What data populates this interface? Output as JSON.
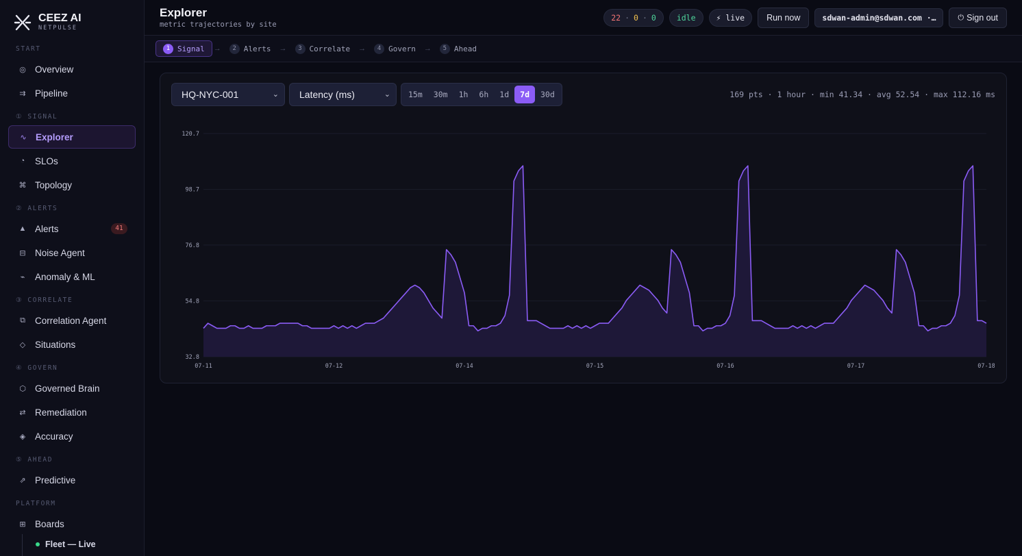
{
  "brand": {
    "name": "CEEZ AI",
    "sub": "NETPULSE"
  },
  "sidebar": {
    "sections": [
      {
        "label": "START",
        "items": [
          {
            "label": "Overview",
            "icon": "◎",
            "icon_name": "overview-icon"
          },
          {
            "label": "Pipeline",
            "icon": "⇉",
            "icon_name": "pipeline-icon"
          }
        ]
      },
      {
        "label": "① SIGNAL",
        "items": [
          {
            "label": "Explorer",
            "icon": "∿",
            "icon_name": "explorer-icon",
            "active": true
          },
          {
            "label": "SLOs",
            "icon": "◔",
            "icon_name": "slo-icon"
          },
          {
            "label": "Topology",
            "icon": "⌘",
            "icon_name": "topology-icon"
          }
        ]
      },
      {
        "label": "② ALERTS",
        "items": [
          {
            "label": "Alerts",
            "icon": "▲",
            "icon_name": "alert-icon",
            "badge": "41"
          },
          {
            "label": "Noise Agent",
            "icon": "⊟",
            "icon_name": "noise-agent-icon"
          },
          {
            "label": "Anomaly & ML",
            "icon": "⌁",
            "icon_name": "anomaly-icon"
          }
        ]
      },
      {
        "label": "③ CORRELATE",
        "items": [
          {
            "label": "Correlation Agent",
            "icon": "⧉",
            "icon_name": "correlation-icon"
          },
          {
            "label": "Situations",
            "icon": "◇",
            "icon_name": "situations-icon"
          }
        ]
      },
      {
        "label": "④ GOVERN",
        "items": [
          {
            "label": "Governed Brain",
            "icon": "⬡",
            "icon_name": "brain-icon"
          },
          {
            "label": "Remediation",
            "icon": "⇄",
            "icon_name": "remediation-icon"
          },
          {
            "label": "Accuracy",
            "icon": "◈",
            "icon_name": "accuracy-icon"
          }
        ]
      },
      {
        "label": "⑤ AHEAD",
        "items": [
          {
            "label": "Predictive",
            "icon": "⇗",
            "icon_name": "predictive-icon"
          }
        ]
      },
      {
        "label": "PLATFORM",
        "items": [
          {
            "label": "Boards",
            "icon": "⊞",
            "icon_name": "boards-icon"
          }
        ]
      }
    ],
    "sub_item": {
      "label": "Fleet — Live"
    }
  },
  "header": {
    "title": "Explorer",
    "subtitle": "metric trajectories by site",
    "counts": {
      "red": "22",
      "yellow": "0",
      "green": "0",
      "sep": "·"
    },
    "state": "idle",
    "live": "⚡ live",
    "run_label": "Run now",
    "user": "sdwan-admin@sdwan.com ·…",
    "signout_label": "Sign out",
    "signout_icon": "⏻"
  },
  "stepper": [
    {
      "num": "1",
      "label": "Signal",
      "active": true
    },
    {
      "num": "2",
      "label": "Alerts"
    },
    {
      "num": "3",
      "label": "Correlate"
    },
    {
      "num": "4",
      "label": "Govern"
    },
    {
      "num": "5",
      "label": "Ahead"
    }
  ],
  "explorer": {
    "site": "HQ-NYC-001",
    "metric": "Latency (ms)",
    "ranges": [
      "15m",
      "30m",
      "1h",
      "6h",
      "1d",
      "7d",
      "30d"
    ],
    "active_range": "7d",
    "stats": "169 pts · 1 hour · min 41.34 · avg 52.54 · max 112.16 ms"
  },
  "chart_data": {
    "type": "area",
    "title": "",
    "xlabel": "",
    "ylabel": "",
    "ylim": [
      32.8,
      120.7
    ],
    "y_ticks": [
      "120.7",
      "98.7",
      "76.8",
      "54.8",
      "32.8"
    ],
    "x_ticks": [
      "07-11",
      "07-12",
      "07-14",
      "07-15",
      "07-16",
      "07-17",
      "07-18"
    ],
    "line_color": "#8b5cf6",
    "series": [
      {
        "values": [
          44,
          46,
          45,
          44,
          44,
          44,
          45,
          45,
          44,
          44,
          45,
          44,
          44,
          44,
          45,
          45,
          45,
          46,
          46,
          46,
          46,
          46,
          45,
          45,
          44,
          44,
          44,
          44,
          44,
          45,
          44,
          45,
          44,
          45,
          44,
          45,
          46,
          46,
          46,
          47,
          48,
          50,
          52,
          54,
          56,
          58,
          60,
          61,
          60,
          58,
          55,
          52,
          50,
          48,
          75,
          73,
          70,
          64,
          58,
          45,
          45,
          43,
          44,
          44,
          45,
          45,
          46,
          49,
          57,
          102,
          106,
          108,
          47,
          47,
          47,
          46,
          45,
          44,
          44,
          44,
          44,
          45,
          44,
          45,
          44,
          45,
          44,
          45,
          46,
          46,
          46,
          48,
          50,
          52,
          55,
          57,
          59,
          61,
          60,
          59,
          57,
          55,
          52,
          50,
          75,
          73,
          70,
          64,
          58,
          45,
          45,
          43,
          44,
          44,
          45,
          45,
          46,
          49,
          57,
          102,
          106,
          108,
          47,
          47,
          47,
          46,
          45,
          44,
          44,
          44,
          44,
          45,
          44,
          45,
          44,
          45,
          44,
          45,
          46,
          46,
          46,
          48,
          50,
          52,
          55,
          57,
          59,
          61,
          60,
          59,
          57,
          55,
          52,
          50,
          75,
          73,
          70,
          64,
          58,
          45,
          45,
          43,
          44,
          44,
          45,
          45,
          46,
          49,
          57,
          102,
          106,
          108,
          47,
          47,
          46
        ]
      }
    ]
  }
}
